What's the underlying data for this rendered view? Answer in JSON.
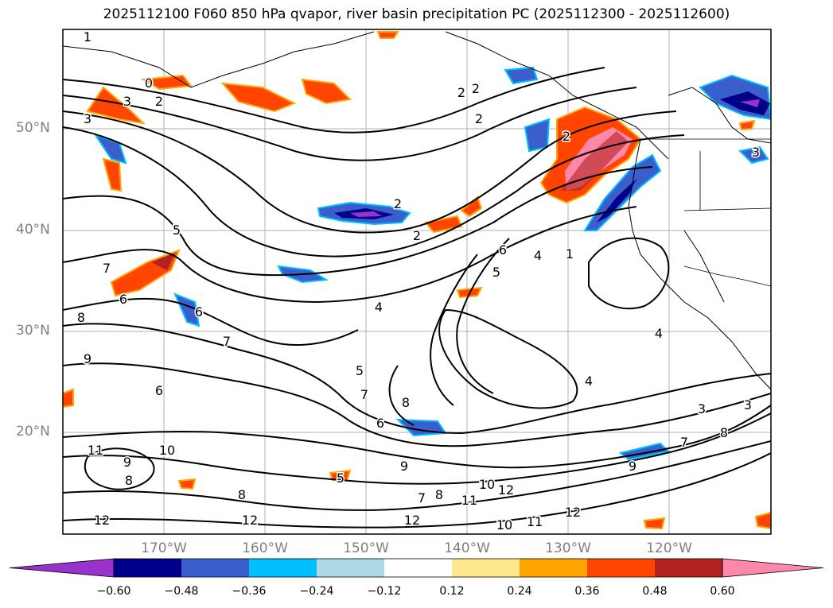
{
  "title": "2025112100 F060 850 hPa qvapor, river basin precipitation PC (2025112300 - 2025112600)",
  "lat_labels": [
    "50°N",
    "40°N",
    "30°N",
    "20°N"
  ],
  "lon_labels": [
    "170°W",
    "160°W",
    "150°W",
    "140°W",
    "130°W",
    "120°W"
  ],
  "colorbar": {
    "colors": [
      "#9932cc",
      "#00008b",
      "#3a5fcd",
      "#00bfff",
      "#add8e6",
      "#ffffff",
      "#ffe88c",
      "#ffa500",
      "#ff4500",
      "#b22222",
      "#ff88aa"
    ],
    "labels": [
      "−0.60",
      "−0.48",
      "−0.36",
      "−0.24",
      "−0.12",
      "0.12",
      "0.24",
      "0.36",
      "0.48",
      "0.60"
    ]
  },
  "contour_labels": [
    "1",
    "0",
    "3",
    "2",
    "3",
    "5",
    "7",
    "6",
    "8",
    "9",
    "6",
    "7",
    "2",
    "2",
    "2",
    "2",
    "2",
    "6",
    "5",
    "4",
    "7",
    "8",
    "5",
    "6",
    "9",
    "10",
    "11",
    "9",
    "8",
    "8",
    "12",
    "12",
    "7",
    "8",
    "11",
    "10",
    "12",
    "12",
    "10",
    "11",
    "12",
    "1",
    "2",
    "4",
    "4",
    "3",
    "8",
    "3",
    "7",
    "9",
    "6",
    "5",
    "4",
    "3"
  ]
}
